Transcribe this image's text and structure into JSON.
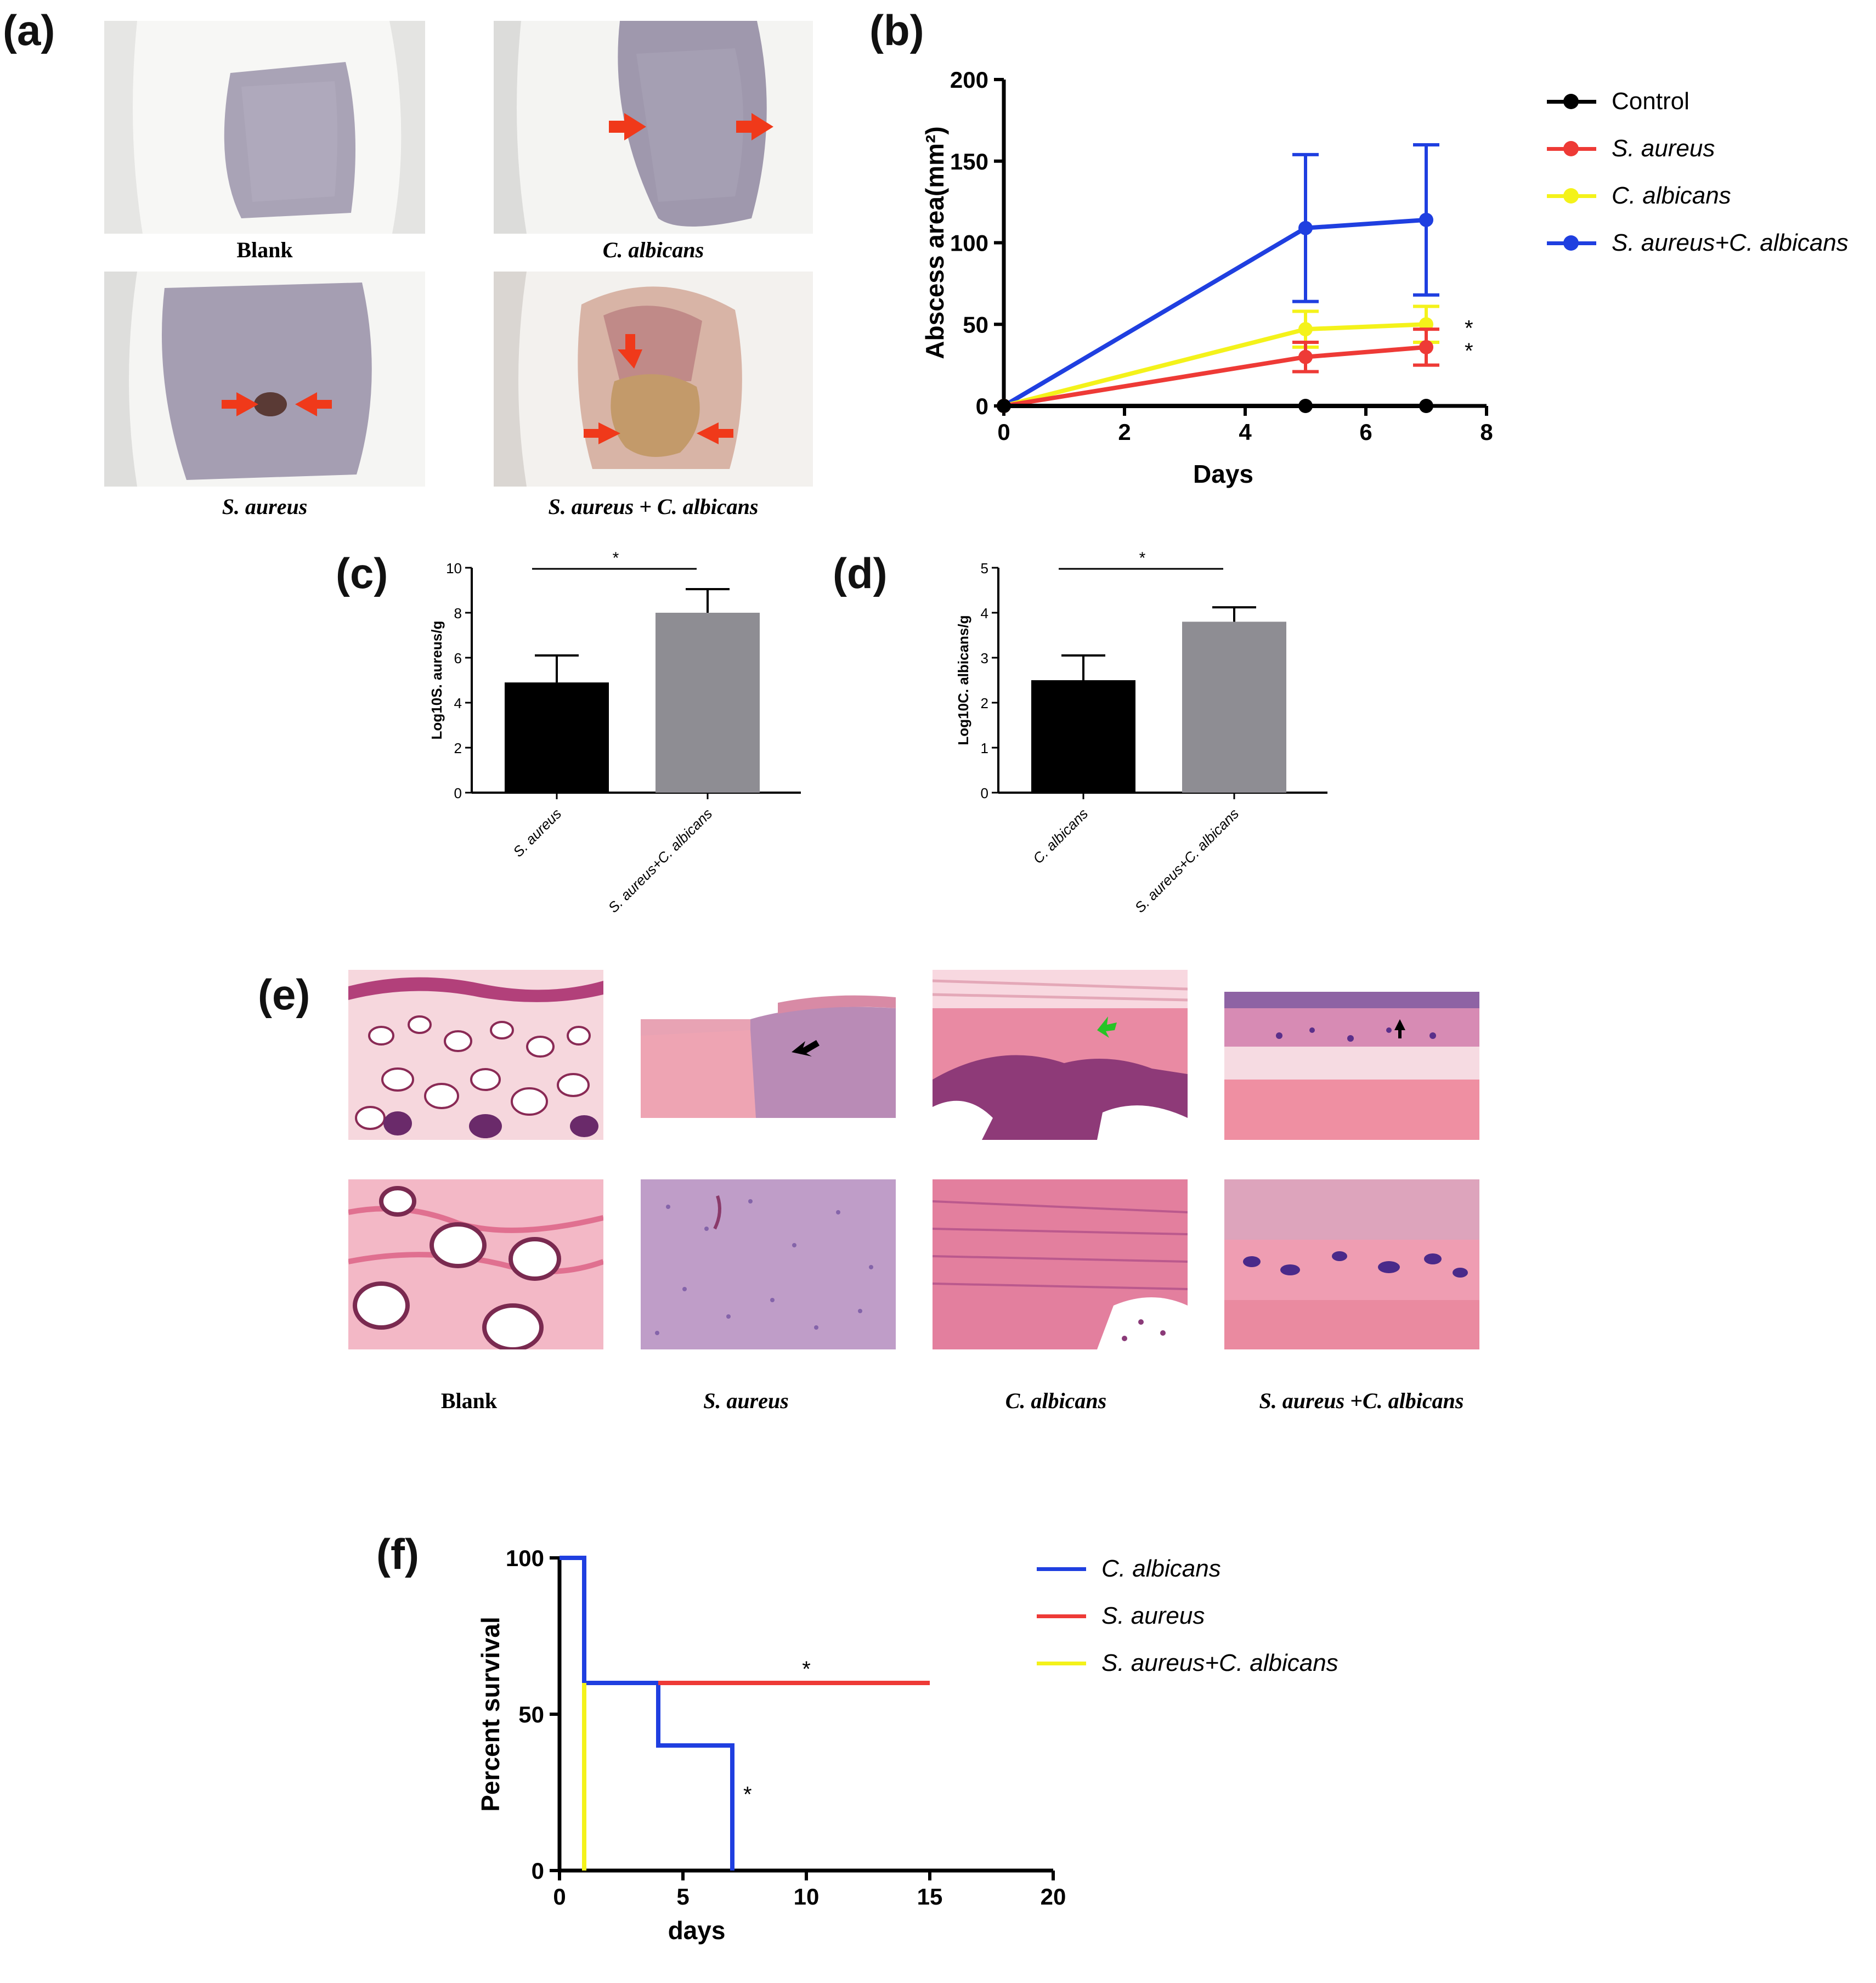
{
  "panels": {
    "a": {
      "label": "(a)",
      "photos": [
        {
          "caption": "Blank",
          "italic": false
        },
        {
          "caption": "C. albicans",
          "italic": true
        },
        {
          "caption": "S. aureus",
          "italic": true
        },
        {
          "caption": "S. aureus + C. albicans",
          "italic": true
        }
      ]
    },
    "b": {
      "label": "(b)"
    },
    "c": {
      "label": "(c)"
    },
    "d": {
      "label": "(d)"
    },
    "e": {
      "label": "(e)",
      "captions": [
        "Blank",
        "S. aureus",
        "C. albicans",
        "S. aureus +C. albicans"
      ]
    },
    "f": {
      "label": "(f)"
    }
  },
  "colors": {
    "black": "#000000",
    "red": "#ee3a36",
    "yellow": "#f4f21a",
    "blue": "#1f3fe0",
    "gray": "#8e8d93",
    "arrow_red": "#f0391a"
  },
  "legend_b": [
    {
      "name": "Control",
      "color": "#000000"
    },
    {
      "name": "S. aureus",
      "color": "#ee3a36"
    },
    {
      "name": "C. albicans",
      "color": "#f4f21a"
    },
    {
      "name": "S. aureus+C. albicans",
      "color": "#1f3fe0"
    }
  ],
  "legend_f": [
    {
      "name": "C. albicans",
      "color": "#1f3fe0"
    },
    {
      "name": "S. aureus",
      "color": "#ee3a36"
    },
    {
      "name": "S. aureus+C. albicans",
      "color": "#f4f21a"
    }
  ],
  "chart_data": [
    {
      "panel": "b",
      "type": "line",
      "xlabel": "Days",
      "ylabel": "Abscess area(mm²)",
      "xlim": [
        0,
        8
      ],
      "ylim": [
        0,
        200
      ],
      "xticks": [
        0,
        2,
        4,
        6,
        8
      ],
      "yticks": [
        0,
        50,
        100,
        150,
        200
      ],
      "x": [
        0,
        5,
        7
      ],
      "series": [
        {
          "name": "Control",
          "color": "#000000",
          "values": [
            0,
            0,
            0
          ],
          "errors": [
            0,
            0,
            0
          ]
        },
        {
          "name": "S. aureus",
          "color": "#ee3a36",
          "values": [
            0,
            30,
            36
          ],
          "errors": [
            0,
            9,
            11
          ],
          "sig": "*"
        },
        {
          "name": "C. albicans",
          "color": "#f4f21a",
          "values": [
            0,
            47,
            50
          ],
          "errors": [
            0,
            11,
            11
          ],
          "sig": "*"
        },
        {
          "name": "S. aureus+C. albicans",
          "color": "#1f3fe0",
          "values": [
            0,
            109,
            114
          ],
          "errors": [
            0,
            45,
            46
          ]
        }
      ]
    },
    {
      "panel": "c",
      "type": "bar",
      "ylabel": "Log10S. aureus/g",
      "categories": [
        "S. aureus",
        "S. aureus+C. albicans"
      ],
      "values": [
        4.9,
        8.0
      ],
      "errors": [
        1.2,
        1.05
      ],
      "colors": [
        "#000000",
        "#8e8d93"
      ],
      "ylim": [
        0,
        10
      ],
      "yticks": [
        0,
        2,
        4,
        6,
        8,
        10
      ],
      "significance": "*"
    },
    {
      "panel": "d",
      "type": "bar",
      "ylabel": "Log10C. albicans/g",
      "categories": [
        "C. albicans",
        "S. aureus+C. albicans"
      ],
      "values": [
        2.5,
        3.8
      ],
      "errors": [
        0.55,
        0.32
      ],
      "colors": [
        "#000000",
        "#8e8d93"
      ],
      "ylim": [
        0,
        5
      ],
      "yticks": [
        0,
        1,
        2,
        3,
        4,
        5
      ],
      "significance": "*"
    },
    {
      "panel": "f",
      "type": "line",
      "xlabel": "days",
      "ylabel": "Percent survival",
      "xlim": [
        0,
        20
      ],
      "ylim": [
        0,
        100
      ],
      "xticks": [
        0,
        5,
        10,
        15,
        20
      ],
      "yticks": [
        0,
        50,
        100
      ],
      "series": [
        {
          "name": "C. albicans",
          "color": "#1f3fe0",
          "steps": [
            [
              0,
              100
            ],
            [
              1,
              100
            ],
            [
              1,
              60
            ],
            [
              4,
              60
            ],
            [
              4,
              40
            ],
            [
              7,
              40
            ],
            [
              7,
              0
            ]
          ],
          "sig": "*"
        },
        {
          "name": "S. aureus",
          "color": "#ee3a36",
          "steps": [
            [
              4,
              60
            ],
            [
              15,
              60
            ]
          ],
          "sig": "*"
        },
        {
          "name": "S. aureus+C. albicans",
          "color": "#f4f21a",
          "steps": [
            [
              1,
              60
            ],
            [
              1,
              0
            ]
          ]
        }
      ]
    }
  ]
}
